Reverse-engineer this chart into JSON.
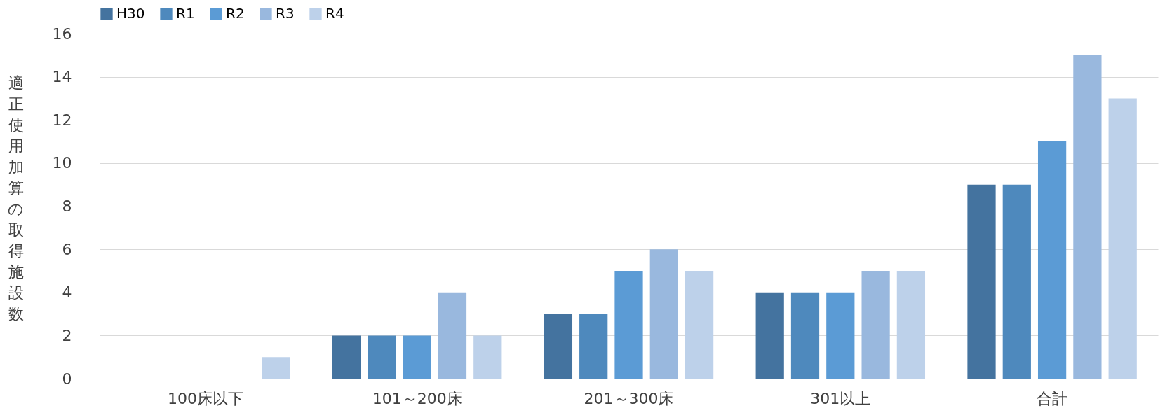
{
  "chart_data": {
    "type": "bar",
    "ylabel": "適正使用加算の取得施設数",
    "categories": [
      "100床以下",
      "101～200床",
      "201～300床",
      "301以上",
      "合計"
    ],
    "series": [
      {
        "name": "H30",
        "color": "#44739f",
        "values": [
          0,
          2,
          3,
          4,
          9
        ]
      },
      {
        "name": "R1",
        "color": "#4e89bd",
        "values": [
          0,
          2,
          3,
          4,
          9
        ]
      },
      {
        "name": "R2",
        "color": "#5b9bd5",
        "values": [
          0,
          2,
          5,
          4,
          11
        ]
      },
      {
        "name": "R3",
        "color": "#99b8de",
        "values": [
          0,
          4,
          6,
          5,
          15
        ]
      },
      {
        "name": "R4",
        "color": "#bdd1ea",
        "values": [
          1,
          2,
          5,
          5,
          13
        ]
      }
    ],
    "ylim": [
      0,
      16
    ],
    "yticks": [
      0,
      2,
      4,
      6,
      8,
      10,
      12,
      14,
      16
    ],
    "grid": "y",
    "legend": "top"
  }
}
